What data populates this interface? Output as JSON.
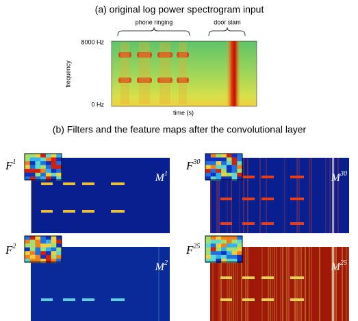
{
  "panel_a": {
    "title": "(a) original log power spectrogram input",
    "annotations": [
      "phone ringing",
      "door slam"
    ],
    "y_axis": {
      "label": "frequency",
      "top": "8000 Hz",
      "bottom": "0 Hz"
    },
    "x_axis": {
      "label": "time (s)"
    }
  },
  "panel_b": {
    "title": "(b) Filters and the feature maps after the convolutional layer",
    "panels": [
      {
        "filter": "F",
        "filter_index": "1",
        "map": "M",
        "map_index": "1"
      },
      {
        "filter": "F",
        "filter_index": "30",
        "map": "M",
        "map_index": "30"
      },
      {
        "filter": "F",
        "filter_index": "2",
        "map": "M",
        "map_index": "2"
      },
      {
        "filter": "F",
        "filter_index": "25",
        "map": "M",
        "map_index": "25"
      }
    ]
  }
}
